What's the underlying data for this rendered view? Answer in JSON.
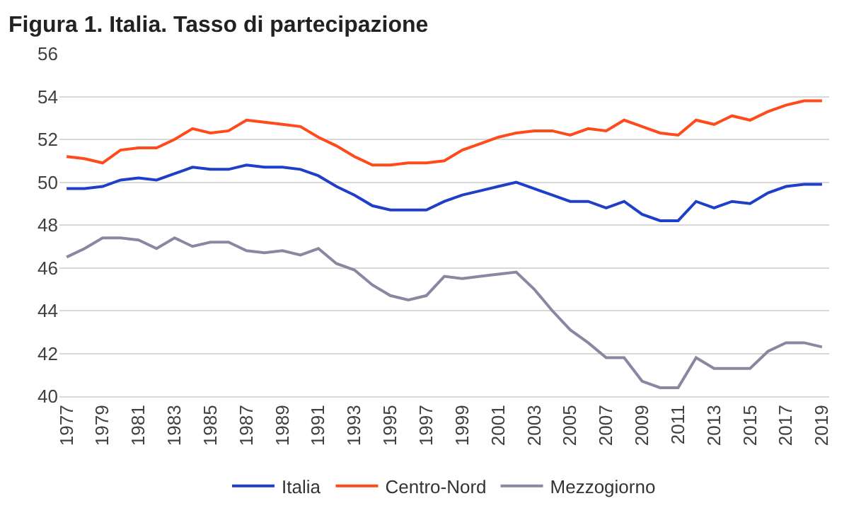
{
  "chart_data": {
    "type": "line",
    "title": "Figura 1. Italia. Tasso di partecipazione",
    "x": [
      1977,
      1978,
      1979,
      1980,
      1981,
      1982,
      1983,
      1984,
      1985,
      1986,
      1987,
      1988,
      1989,
      1990,
      1991,
      1992,
      1993,
      1994,
      1995,
      1996,
      1997,
      1998,
      1999,
      2000,
      2001,
      2002,
      2003,
      2004,
      2005,
      2006,
      2007,
      2008,
      2009,
      2010,
      2011,
      2012,
      2013,
      2014,
      2015,
      2016,
      2017,
      2018,
      2019
    ],
    "series": [
      {
        "name": "Italia",
        "color": "#1f3fc8",
        "values": [
          49.7,
          49.7,
          49.8,
          50.1,
          50.2,
          50.1,
          50.4,
          50.7,
          50.6,
          50.6,
          50.8,
          50.7,
          50.7,
          50.6,
          50.3,
          49.8,
          49.4,
          48.9,
          48.7,
          48.7,
          48.7,
          49.1,
          49.4,
          49.6,
          49.8,
          50.0,
          49.7,
          49.4,
          49.1,
          49.1,
          48.8,
          49.1,
          48.5,
          48.2,
          48.2,
          49.1,
          48.8,
          49.1,
          49.0,
          49.5,
          49.8,
          49.9,
          49.9
        ]
      },
      {
        "name": "Centro-Nord",
        "color": "#ff4a1c",
        "values": [
          51.2,
          51.1,
          50.9,
          51.5,
          51.6,
          51.6,
          52.0,
          52.5,
          52.3,
          52.4,
          52.9,
          52.8,
          52.7,
          52.6,
          52.1,
          51.7,
          51.2,
          50.8,
          50.8,
          50.9,
          50.9,
          51.0,
          51.5,
          51.8,
          52.1,
          52.3,
          52.4,
          52.4,
          52.2,
          52.5,
          52.4,
          52.9,
          52.6,
          52.3,
          52.2,
          52.9,
          52.7,
          53.1,
          52.9,
          53.3,
          53.6,
          53.8,
          53.8
        ]
      },
      {
        "name": "Mezzogiorno",
        "color": "#8c86a0",
        "values": [
          46.5,
          46.9,
          47.4,
          47.4,
          47.3,
          46.9,
          47.4,
          47.0,
          47.2,
          47.2,
          46.8,
          46.7,
          46.8,
          46.6,
          46.9,
          46.2,
          45.9,
          45.2,
          44.7,
          44.5,
          44.7,
          45.6,
          45.5,
          45.6,
          45.7,
          45.8,
          45.0,
          44.0,
          43.1,
          42.5,
          41.8,
          41.8,
          40.7,
          40.4,
          40.4,
          41.8,
          41.3,
          41.3,
          41.3,
          42.1,
          42.5,
          42.5,
          42.3
        ]
      }
    ],
    "xlim": [
      1976.6,
      2019.4
    ],
    "xticks": [
      1977,
      1979,
      1981,
      1983,
      1985,
      1987,
      1989,
      1991,
      1993,
      1995,
      1997,
      1999,
      2001,
      2003,
      2005,
      2007,
      2009,
      2011,
      2013,
      2015,
      2017,
      2019
    ],
    "ylim": [
      40,
      56
    ],
    "yticks": [
      40,
      42,
      44,
      46,
      48,
      50,
      52,
      54,
      56
    ],
    "grid": "y",
    "legend": "bottom",
    "marker": "none",
    "line_style": "solid"
  }
}
